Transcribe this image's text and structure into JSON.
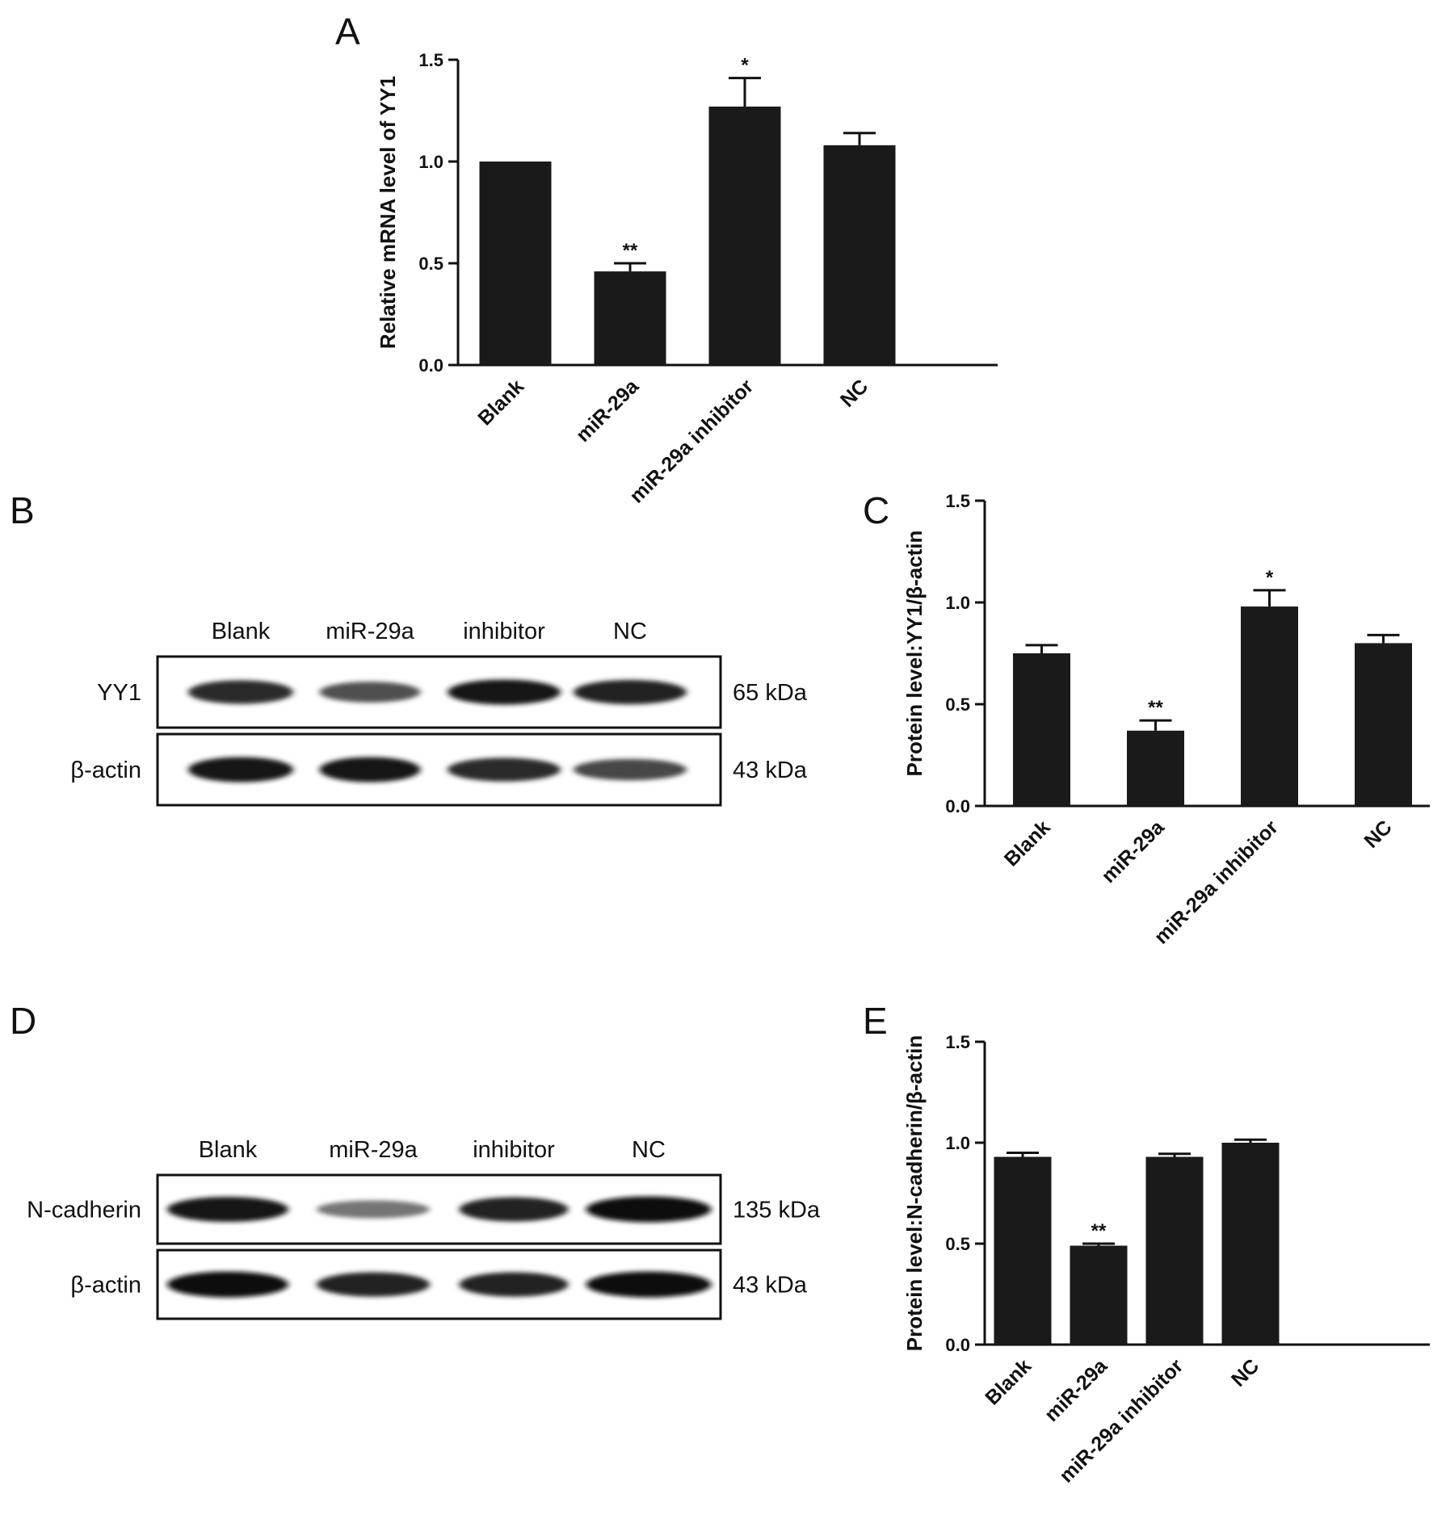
{
  "panel_letters": [
    "A",
    "B",
    "C",
    "D",
    "E"
  ],
  "chart_data": [
    {
      "panel": "A",
      "type": "bar",
      "title": "",
      "xlabel": "",
      "ylabel": "Relative mRNA level of YY1",
      "categories": [
        "Blank",
        "miR-29a",
        "miR-29a inhibitor",
        "NC"
      ],
      "values": [
        1.0,
        0.46,
        1.27,
        1.08
      ],
      "errors": [
        0.0,
        0.04,
        0.14,
        0.06
      ],
      "significance": [
        "",
        "**",
        "*",
        ""
      ],
      "ylim": [
        0,
        1.5
      ],
      "yticks": [
        "0.0",
        "0.5",
        "1.0",
        "1.5"
      ],
      "bar_color": "#1a1a1a",
      "grid": false
    },
    {
      "panel": "C",
      "type": "bar",
      "title": "",
      "xlabel": "",
      "ylabel": "Protein level:YY1/β-actin",
      "categories": [
        "Blank",
        "miR-29a",
        "miR-29a inhibitor",
        "NC"
      ],
      "values": [
        0.75,
        0.37,
        0.98,
        0.8
      ],
      "errors": [
        0.04,
        0.05,
        0.08,
        0.04
      ],
      "significance": [
        "",
        "**",
        "*",
        ""
      ],
      "ylim": [
        0,
        1.5
      ],
      "yticks": [
        "0.0",
        "0.5",
        "1.0",
        "1.5"
      ],
      "bar_color": "#1a1a1a",
      "grid": false
    },
    {
      "panel": "E",
      "type": "bar",
      "title": "",
      "xlabel": "",
      "ylabel": "Protein level:N-cadherin/β-actin",
      "categories": [
        "Blank",
        "miR-29a",
        "miR-29a inhibitor",
        "NC"
      ],
      "values": [
        0.93,
        0.49,
        0.93,
        1.0
      ],
      "errors": [
        0.02,
        0.01,
        0.015,
        0.015
      ],
      "significance": [
        "",
        "**",
        "",
        ""
      ],
      "ylim": [
        0,
        1.5
      ],
      "yticks": [
        "0.0",
        "0.5",
        "1.0",
        "1.5"
      ],
      "bar_color": "#1a1a1a",
      "grid": false
    }
  ],
  "blots": [
    {
      "panel": "B",
      "lanes": [
        "Blank",
        "miR-29a",
        "inhibitor",
        "NC"
      ],
      "rows": [
        {
          "protein": "YY1",
          "size": "65 kDa",
          "intensity": [
            0.85,
            0.65,
            0.95,
            0.9
          ]
        },
        {
          "protein": "β-actin",
          "size": "43 kDa",
          "intensity": [
            0.95,
            0.95,
            0.85,
            0.7
          ]
        }
      ]
    },
    {
      "panel": "D",
      "lanes": [
        "Blank",
        "miR-29a",
        "inhibitor",
        "NC"
      ],
      "rows": [
        {
          "protein": "N-cadherin",
          "size": "135 kDa",
          "intensity": [
            0.95,
            0.45,
            0.9,
            1.0
          ]
        },
        {
          "protein": "β-actin",
          "size": "43 kDa",
          "intensity": [
            1.0,
            0.9,
            0.9,
            1.0
          ]
        }
      ]
    }
  ]
}
